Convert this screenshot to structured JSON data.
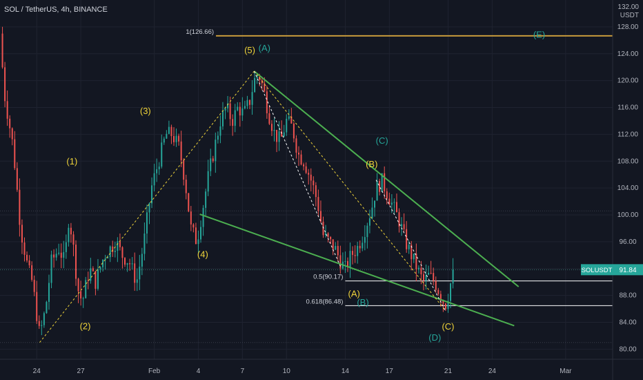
{
  "header": {
    "title": "SOL / TetherUS, 4h, BINANCE"
  },
  "currency": {
    "top_tick": "132.00",
    "label": "USDT"
  },
  "price_tag": {
    "symbol": "SOLUSDT",
    "value": "91.84"
  },
  "colors": {
    "up": "#26a69a",
    "down": "#ef5350",
    "wave_yellow": "#f0d43a",
    "wave_teal": "#26a69a",
    "trendline": "#4caf50",
    "fib_line": "#ffffff",
    "level_1": "#c89b3c"
  },
  "chart_data": {
    "type": "candlestick",
    "title": "SOL / TetherUS, 4h, BINANCE",
    "ylim": [
      78.5,
      132
    ],
    "y_ticks": [
      80,
      84,
      88,
      92,
      96,
      100,
      104,
      108,
      112,
      116,
      120,
      124,
      128
    ],
    "x_ticks": [
      {
        "label": "24",
        "t": 0
      },
      {
        "label": "27",
        "t": 3
      },
      {
        "label": "Feb",
        "t": 8
      },
      {
        "label": "4",
        "t": 11
      },
      {
        "label": "7",
        "t": 14
      },
      {
        "label": "10",
        "t": 17
      },
      {
        "label": "14",
        "t": 21
      },
      {
        "label": "17",
        "t": 24
      },
      {
        "label": "21",
        "t": 28
      },
      {
        "label": "24",
        "t": 31
      },
      {
        "label": "Mar",
        "t": 36
      }
    ],
    "t_range": [
      -2.5,
      39.2
    ],
    "current_price": 91.84,
    "price_path": [
      [
        -2.5,
        127
      ],
      [
        -2.2,
        118
      ],
      [
        -1.6,
        110
      ],
      [
        -1.1,
        98
      ],
      [
        -0.6,
        92
      ],
      [
        -0.3,
        90
      ],
      [
        0.2,
        82
      ],
      [
        0.6,
        86
      ],
      [
        1.0,
        93
      ],
      [
        1.5,
        95
      ],
      [
        1.9,
        93
      ],
      [
        2.2,
        100
      ],
      [
        2.5,
        95
      ],
      [
        2.8,
        89
      ],
      [
        3.1,
        87
      ],
      [
        3.6,
        92
      ],
      [
        4.0,
        90
      ],
      [
        4.6,
        94
      ],
      [
        5.0,
        95
      ],
      [
        5.4,
        96
      ],
      [
        5.8,
        94
      ],
      [
        6.3,
        93
      ],
      [
        6.8,
        90
      ],
      [
        7.3,
        96
      ],
      [
        7.8,
        104
      ],
      [
        8.3,
        108
      ],
      [
        8.8,
        112
      ],
      [
        9.2,
        112
      ],
      [
        9.7,
        110
      ],
      [
        10.1,
        105
      ],
      [
        10.5,
        98
      ],
      [
        10.9,
        96
      ],
      [
        11.3,
        101
      ],
      [
        11.7,
        106
      ],
      [
        12.1,
        110
      ],
      [
        12.5,
        114
      ],
      [
        12.9,
        116
      ],
      [
        13.3,
        114
      ],
      [
        13.7,
        116
      ],
      [
        14.1,
        115
      ],
      [
        14.5,
        117
      ],
      [
        14.8,
        120
      ],
      [
        15.1,
        121
      ],
      [
        15.4,
        119
      ],
      [
        15.8,
        115
      ],
      [
        16.2,
        112
      ],
      [
        16.6,
        111
      ],
      [
        17.0,
        114
      ],
      [
        17.4,
        113
      ],
      [
        17.8,
        109
      ],
      [
        18.2,
        108
      ],
      [
        18.7,
        105
      ],
      [
        19.1,
        102
      ],
      [
        19.5,
        97
      ],
      [
        19.9,
        96
      ],
      [
        20.3,
        95
      ],
      [
        20.7,
        93
      ],
      [
        21.0,
        92
      ],
      [
        21.4,
        94
      ],
      [
        21.8,
        95
      ],
      [
        22.2,
        97
      ],
      [
        22.5,
        99
      ],
      [
        22.8,
        101
      ],
      [
        23.1,
        104
      ],
      [
        23.5,
        105
      ],
      [
        23.9,
        103
      ],
      [
        24.3,
        101
      ],
      [
        24.7,
        99
      ],
      [
        25.1,
        96
      ],
      [
        25.5,
        94
      ],
      [
        25.9,
        92
      ],
      [
        26.3,
        90
      ],
      [
        26.7,
        91
      ],
      [
        27.1,
        90
      ],
      [
        27.5,
        88
      ],
      [
        27.8,
        86.5
      ],
      [
        28.1,
        89
      ],
      [
        28.35,
        91.84
      ]
    ],
    "levels": [
      {
        "label": "1(126.66)",
        "value": 126.66,
        "t0": 12.2,
        "t1": 39.2,
        "color": "#c89b3c"
      },
      {
        "label": "0.5(90.17)",
        "value": 90.17,
        "t0": 21.0,
        "t1": 39.2,
        "color": "#ffffff"
      },
      {
        "label": "0.618(86.48)",
        "value": 86.48,
        "t0": 21.0,
        "t1": 39.2,
        "color": "#ffffff"
      }
    ],
    "trendlines": [
      {
        "style": "solid",
        "color": "#4caf50",
        "p1": [
          14.8,
          121.4
        ],
        "p2": [
          32.8,
          89.3
        ]
      },
      {
        "style": "solid",
        "color": "#4caf50",
        "p1": [
          11.1,
          100.1
        ],
        "p2": [
          32.5,
          83.5
        ]
      },
      {
        "style": "dashed",
        "color": "#f0d43a",
        "p1": [
          0.2,
          81.0
        ],
        "p2": [
          14.8,
          121.4
        ]
      },
      {
        "style": "dashed",
        "color": "#f0d43a",
        "p1": [
          14.8,
          121.4
        ],
        "p2": [
          27.8,
          85.8
        ]
      },
      {
        "style": "dashed",
        "color": "#ffffff",
        "p1": [
          14.8,
          121.4
        ],
        "p2": [
          20.7,
          92.2
        ]
      },
      {
        "style": "dashed",
        "color": "#ffffff",
        "p1": [
          23.1,
          105.2
        ],
        "p2": [
          27.8,
          85.8
        ]
      }
    ],
    "annotations": [
      {
        "text": "(1)",
        "t": 2.4,
        "y": 107.5,
        "color": "#f0d43a"
      },
      {
        "text": "(2)",
        "t": 3.3,
        "y": 83.0,
        "color": "#f0d43a"
      },
      {
        "text": "(3)",
        "t": 7.4,
        "y": 115.0,
        "color": "#f0d43a"
      },
      {
        "text": "(4)",
        "t": 11.3,
        "y": 93.7,
        "color": "#f0d43a"
      },
      {
        "text": "(5)",
        "t": 14.5,
        "y": 124.1,
        "color": "#f0d43a"
      },
      {
        "text": "(A)",
        "t": 15.5,
        "y": 124.4,
        "color": "#26a69a"
      },
      {
        "text": "(B)",
        "t": 22.8,
        "y": 107.1,
        "color": "#f0d43a"
      },
      {
        "text": "(C)",
        "t": 23.5,
        "y": 110.6,
        "color": "#26a69a"
      },
      {
        "text": "(A)",
        "t": 21.6,
        "y": 87.8,
        "color": "#f0d43a"
      },
      {
        "text": "(B)",
        "t": 22.2,
        "y": 86.5,
        "color": "#26a69a"
      },
      {
        "text": "(C)",
        "t": 28.0,
        "y": 82.9,
        "color": "#f0d43a"
      },
      {
        "text": "(D)",
        "t": 27.1,
        "y": 81.3,
        "color": "#26a69a"
      },
      {
        "text": "(E)",
        "t": 34.2,
        "y": 126.4,
        "color": "#26a69a"
      }
    ]
  }
}
